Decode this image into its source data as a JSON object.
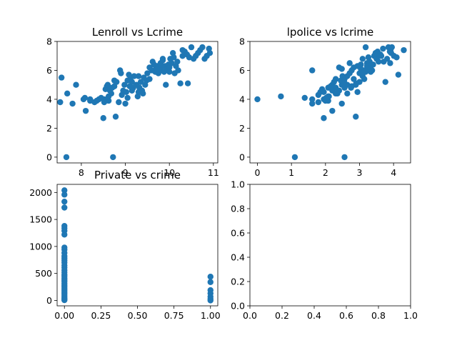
{
  "figure": {
    "background": "#ffffff"
  },
  "chart_data": [
    {
      "type": "scatter",
      "title": "Lenroll vs Lcrime",
      "xlim": [
        7.45,
        11.1
      ],
      "ylim": [
        -0.4,
        8.0
      ],
      "xticks": [
        8,
        9,
        10,
        11
      ],
      "yticks": [
        0,
        2,
        4,
        6,
        8
      ],
      "color": "#1f77b4",
      "x": [
        7.52,
        7.55,
        7.66,
        7.68,
        7.8,
        7.88,
        8.05,
        8.1,
        8.08,
        8.2,
        8.3,
        8.35,
        8.4,
        8.45,
        8.5,
        8.52,
        8.55,
        8.58,
        8.6,
        8.62,
        8.65,
        8.68,
        8.7,
        8.72,
        8.75,
        8.78,
        8.8,
        8.85,
        8.88,
        8.9,
        8.92,
        8.95,
        8.98,
        9.0,
        9.02,
        9.05,
        9.08,
        9.1,
        9.12,
        9.15,
        9.18,
        9.2,
        9.25,
        9.28,
        9.3,
        9.32,
        9.35,
        9.38,
        9.4,
        9.42,
        9.45,
        9.48,
        9.5,
        9.55,
        9.6,
        9.62,
        9.65,
        9.68,
        9.7,
        9.72,
        9.75,
        9.78,
        9.8,
        9.82,
        9.85,
        9.88,
        9.9,
        9.92,
        9.95,
        9.98,
        10.0,
        10.02,
        10.05,
        10.08,
        10.1,
        10.12,
        10.15,
        10.18,
        10.2,
        10.25,
        10.3,
        10.35,
        10.4,
        10.45,
        10.5,
        10.55,
        10.6,
        10.65,
        10.7,
        10.75,
        10.8,
        10.85,
        10.9,
        10.92,
        8.52,
        8.62,
        8.75,
        9.05,
        9.3,
        9.55,
        9.72,
        9.85,
        10.0,
        10.05,
        10.3,
        10.42,
        8.2,
        9.15
      ],
      "y": [
        3.8,
        5.5,
        0.0,
        4.4,
        3.7,
        5.0,
        4.0,
        3.2,
        4.1,
        3.9,
        3.8,
        3.9,
        4.0,
        4.1,
        2.7,
        3.8,
        4.7,
        4.9,
        5.0,
        3.9,
        4.6,
        4.4,
        4.8,
        0.0,
        5.3,
        2.8,
        5.2,
        3.8,
        6.0,
        5.8,
        4.3,
        4.6,
        5.0,
        3.7,
        4.5,
        5.3,
        5.7,
        4.9,
        5.5,
        5.2,
        4.8,
        5.6,
        5.0,
        4.2,
        4.5,
        4.8,
        5.2,
        4.6,
        4.4,
        5.5,
        5.0,
        5.3,
        5.8,
        6.2,
        6.0,
        6.6,
        6.4,
        5.9,
        6.1,
        6.3,
        5.8,
        6.2,
        6.5,
        6.0,
        6.7,
        5.9,
        6.3,
        5.0,
        6.1,
        6.4,
        6.2,
        6.8,
        6.5,
        7.2,
        6.9,
        5.8,
        6.3,
        6.6,
        6.0,
        5.1,
        7.0,
        7.3,
        7.1,
        6.9,
        7.6,
        6.8,
        7.0,
        7.2,
        7.4,
        7.6,
        6.8,
        7.0,
        7.5,
        7.2,
        4.0,
        4.2,
        4.9,
        4.1,
        5.6,
        5.4,
        6.1,
        6.8,
        5.9,
        6.5,
        7.4,
        5.1,
        4.0,
        4.6
      ]
    },
    {
      "type": "scatter",
      "title": "lpolice vs lcrime",
      "xlim": [
        -0.22,
        4.5
      ],
      "ylim": [
        -0.4,
        8.0
      ],
      "xticks": [
        0,
        1,
        2,
        3,
        4
      ],
      "yticks": [
        0,
        2,
        4,
        6,
        8
      ],
      "color": "#1f77b4",
      "x": [
        0.0,
        0.69,
        1.1,
        1.39,
        1.61,
        1.61,
        1.61,
        1.79,
        1.79,
        1.95,
        1.95,
        1.95,
        2.08,
        2.08,
        2.08,
        2.2,
        2.2,
        2.2,
        2.3,
        2.3,
        2.3,
        2.4,
        2.4,
        2.48,
        2.48,
        2.48,
        2.56,
        2.56,
        2.56,
        2.64,
        2.64,
        2.64,
        2.71,
        2.71,
        2.77,
        2.77,
        2.83,
        2.83,
        2.89,
        2.89,
        2.94,
        2.94,
        3.0,
        3.0,
        3.04,
        3.04,
        3.09,
        3.09,
        3.14,
        3.14,
        3.18,
        3.18,
        3.22,
        3.22,
        3.26,
        3.26,
        3.3,
        3.3,
        3.33,
        3.37,
        3.4,
        3.43,
        3.47,
        3.5,
        3.53,
        3.56,
        3.58,
        3.61,
        3.64,
        3.69,
        3.71,
        3.76,
        3.81,
        3.85,
        3.89,
        3.91,
        3.93,
        3.95,
        4.01,
        4.09,
        4.14,
        4.3,
        2.0,
        2.1,
        2.25,
        2.5,
        1.9,
        2.35,
        3.25,
        3.9,
        2.15,
        2.6,
        1.85,
        2.02,
        2.45,
        2.9,
        3.35,
        3.1,
        2.75,
        2.55
      ],
      "y": [
        4.0,
        4.2,
        0.0,
        4.1,
        3.7,
        4.0,
        6.0,
        3.8,
        4.3,
        4.0,
        4.5,
        2.7,
        4.2,
        4.8,
        3.9,
        4.6,
        5.0,
        3.2,
        4.8,
        5.4,
        4.4,
        4.6,
        6.2,
        5.0,
        3.7,
        6.1,
        4.8,
        0.0,
        5.4,
        5.0,
        4.4,
        5.6,
        5.8,
        6.5,
        4.9,
        6.0,
        5.4,
        6.2,
        2.8,
        5.0,
        4.5,
        6.3,
        5.2,
        5.8,
        6.1,
        6.4,
        5.6,
        6.8,
        6.0,
        5.4,
        5.9,
        7.6,
        6.3,
        6.5,
        6.1,
        6.9,
        6.6,
        6.2,
        5.9,
        6.0,
        6.4,
        7.0,
        7.2,
        6.8,
        7.3,
        6.6,
        7.0,
        7.1,
        7.0,
        7.5,
        6.6,
        5.2,
        6.8,
        7.6,
        7.3,
        7.4,
        7.2,
        7.6,
        7.0,
        6.9,
        5.7,
        7.4,
        3.9,
        4.2,
        5.2,
        5.6,
        4.7,
        4.4,
        6.3,
        6.5,
        4.9,
        5.0,
        4.5,
        4.1,
        5.3,
        5.1,
        6.4,
        5.8,
        4.8,
        5.2
      ]
    },
    {
      "type": "scatter",
      "title": "Private vs crime",
      "xlim": [
        -0.05,
        1.05
      ],
      "ylim": [
        -100,
        2150
      ],
      "xticks": [
        0.0,
        0.25,
        0.5,
        0.75,
        1.0
      ],
      "xtick_labels": [
        "0.00",
        "0.25",
        "0.50",
        "0.75",
        "1.00"
      ],
      "yticks": [
        0,
        500,
        1000,
        1500,
        2000
      ],
      "color": "#1f77b4",
      "x": [
        0,
        0,
        0,
        0,
        0,
        0,
        0,
        0,
        0,
        0,
        0,
        0,
        0,
        0,
        0,
        0,
        0,
        0,
        0,
        0,
        0,
        0,
        0,
        0,
        0,
        0,
        0,
        0,
        0,
        0,
        0,
        0,
        0,
        0,
        0,
        0,
        1,
        1,
        1,
        1,
        1,
        1,
        1
      ],
      "y": [
        2040,
        1960,
        1830,
        1720,
        1380,
        1340,
        1290,
        1220,
        980,
        940,
        880,
        820,
        780,
        740,
        700,
        650,
        610,
        560,
        520,
        480,
        450,
        410,
        380,
        350,
        310,
        280,
        250,
        220,
        190,
        160,
        130,
        100,
        70,
        40,
        20,
        5,
        440,
        340,
        190,
        130,
        70,
        30,
        0
      ]
    },
    {
      "type": "scatter",
      "title": "",
      "xlim": [
        0.0,
        1.0
      ],
      "ylim": [
        0.0,
        1.0
      ],
      "xticks": [
        0.0,
        0.2,
        0.4,
        0.6,
        0.8,
        1.0
      ],
      "xtick_labels": [
        "0.0",
        "0.2",
        "0.4",
        "0.6",
        "0.8",
        "1.0"
      ],
      "yticks": [
        0.0,
        0.2,
        0.4,
        0.6,
        0.8,
        1.0
      ],
      "ytick_labels": [
        "0.0",
        "0.2",
        "0.4",
        "0.6",
        "0.8",
        "1.0"
      ],
      "color": "#1f77b4",
      "x": [],
      "y": []
    }
  ]
}
